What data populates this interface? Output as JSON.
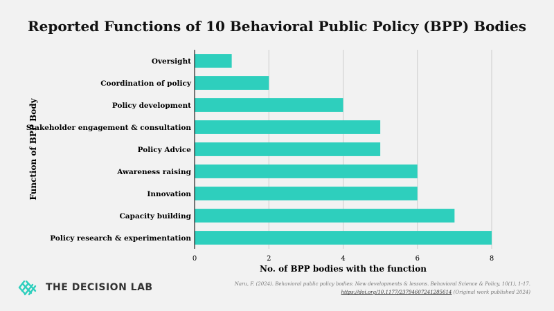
{
  "chart_data": {
    "type": "bar",
    "orientation": "horizontal",
    "title": "Reported Functions of 10 Behavioral Public Policy (BPP) Bodies",
    "xlabel": "No. of BPP bodies with the function",
    "ylabel": "Function of BPP Body",
    "categories": [
      "Oversight",
      "Coordination of policy",
      "Policy development",
      "Stakeholder engagement & consultation",
      "Policy Advice",
      "Awareness raising",
      "Innovation",
      "Capacity building",
      "Policy research & experimentation"
    ],
    "values": [
      1,
      2,
      4,
      5,
      5,
      6,
      6,
      7,
      8
    ],
    "xlim": [
      0,
      8
    ],
    "xticks": [
      0,
      2,
      4,
      6,
      8
    ],
    "grid": true,
    "bar_color": "#2ecfbd",
    "grid_color": "#cccccc"
  },
  "footer": {
    "logo_text": "THE DECISION LAB",
    "logo_color": "#2ecfbd",
    "citation_line1": "Naru, F. (2024). Behavioral public policy bodies: New developments & lessons. Behavioral Science & Policy, 10(1), 1-17.",
    "citation_link": "https://doi.org/10.1177/23794607241285614",
    "citation_note": "(Original work published 2024)"
  }
}
